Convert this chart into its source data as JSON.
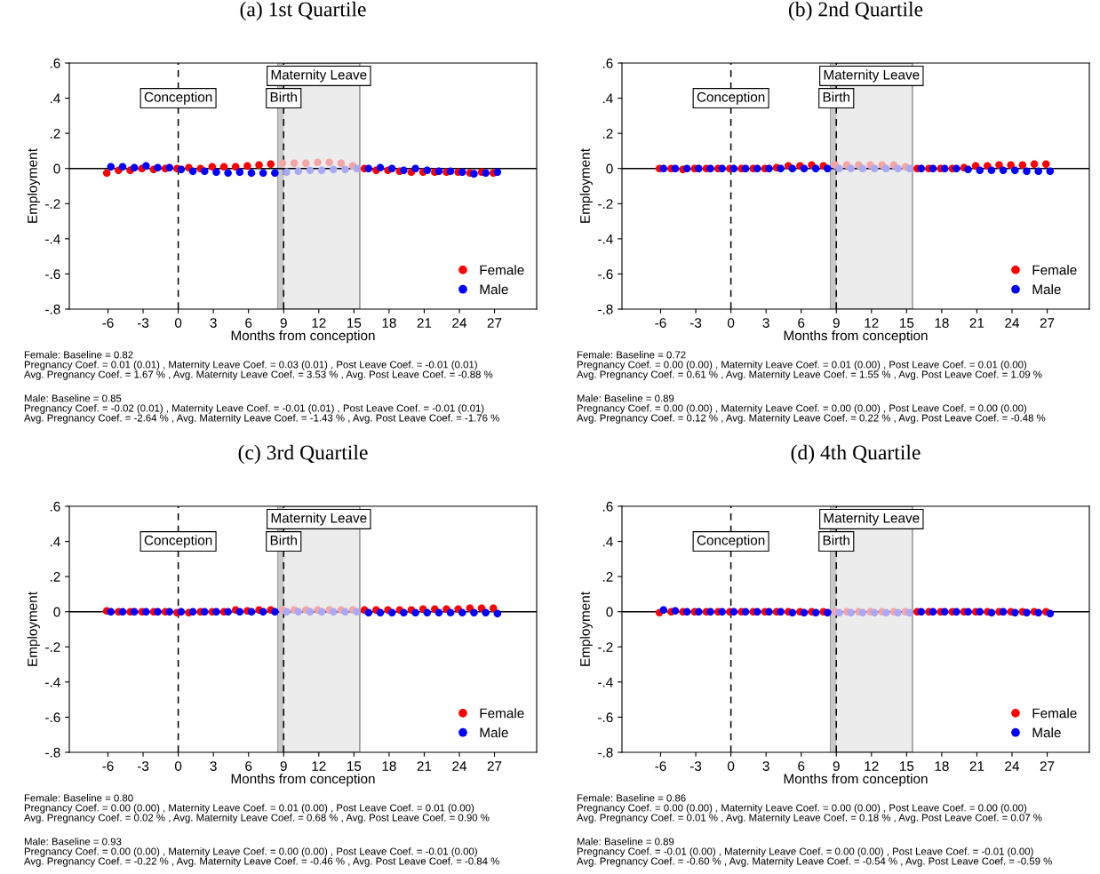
{
  "chart_data": [
    {
      "type": "scatter",
      "title": "(a) 1st Quartile",
      "xlabel": "Months from conception",
      "ylabel": "Employment",
      "xlim": [
        -9.3,
        30.6
      ],
      "xticks": [
        -6,
        -3,
        0,
        3,
        6,
        9,
        12,
        15,
        18,
        21,
        24,
        27
      ],
      "ylim": [
        -0.8,
        0.6
      ],
      "yticks": [
        {
          "value": 0.6,
          "label": ".6"
        },
        {
          "value": 0.4,
          "label": ".4"
        },
        {
          "value": 0.2,
          "label": ".2"
        },
        0,
        {
          "value": -0.2,
          "label": "-.2"
        },
        {
          "value": -0.4,
          "label": "-.4"
        },
        {
          "value": -0.6,
          "label": "-.6"
        },
        {
          "value": -0.8,
          "label": "-.8"
        }
      ],
      "grid": false,
      "legend": "bottom right",
      "marker": "circle",
      "ref_lines": [
        {
          "axis": "y",
          "value": 0,
          "color": "#000000",
          "line_style": "solid"
        },
        {
          "axis": "x",
          "value": 0,
          "label": "Conception",
          "color": "#000000",
          "line_style": "dashed"
        },
        {
          "axis": "x",
          "value": 9,
          "label": "Birth",
          "color": "#000000",
          "line_style": "dashed"
        }
      ],
      "bands": [
        {
          "axis": "x",
          "from": 8.5,
          "to": 15.5,
          "label": "Maternity Leave",
          "color": "#ececec"
        },
        {
          "axis": "x",
          "from": 8.5,
          "to": 9,
          "color": "#c8c8c8"
        }
      ],
      "series": [
        {
          "name": "Female",
          "color": "#ff0000",
          "x": [
            -6.1,
            -5.1,
            -4.1,
            -3.1,
            -2.1,
            -1.1,
            -0.1,
            0.9,
            1.9,
            2.9,
            3.9,
            4.9,
            5.9,
            6.9,
            7.9,
            15.9,
            16.9,
            17.9,
            18.9,
            19.9,
            20.9,
            21.9,
            22.9,
            23.9,
            24.9,
            25.9,
            26.9
          ],
          "values": [
            -0.025,
            -0.01,
            -0.01,
            0,
            -0.005,
            0,
            0,
            0.005,
            0,
            0.01,
            0.01,
            0.01,
            0.015,
            0.02,
            0.025,
            0,
            -0.01,
            -0.01,
            -0.015,
            -0.02,
            -0.02,
            -0.02,
            -0.02,
            -0.02,
            -0.025,
            -0.02,
            -0.025
          ]
        },
        {
          "color": "#f4a6a6",
          "x": [
            8.9,
            9.9,
            10.9,
            11.9,
            12.9,
            13.9,
            14.9
          ],
          "values": [
            0.03,
            0.03,
            0.03,
            0.035,
            0.035,
            0.03,
            0.015
          ]
        },
        {
          "name": "Male",
          "color": "#0000ff",
          "x": [
            -5.75,
            -4.75,
            -3.75,
            -2.75,
            -1.75,
            -0.75,
            0.25,
            1.25,
            2.25,
            3.25,
            4.25,
            5.25,
            6.25,
            7.25,
            8.25,
            16.25,
            17.25,
            18.25,
            19.25,
            20.25,
            21.25,
            22.25,
            23.25,
            24.25,
            25.25,
            26.25,
            27.25
          ],
          "values": [
            0.01,
            0.01,
            0.005,
            0.015,
            0.005,
            0.005,
            -0.005,
            -0.015,
            -0.015,
            -0.02,
            -0.025,
            -0.02,
            -0.025,
            -0.025,
            -0.025,
            0,
            0.005,
            0,
            -0.01,
            0,
            -0.01,
            -0.015,
            -0.015,
            -0.02,
            -0.03,
            -0.025,
            -0.02
          ]
        },
        {
          "color": "#a9a9f7",
          "x": [
            9.25,
            10.25,
            11.25,
            12.25,
            13.25,
            14.25,
            15.25
          ],
          "values": [
            -0.02,
            -0.015,
            -0.01,
            -0.01,
            -0.005,
            -0.005,
            0
          ]
        }
      ],
      "annotations": [
        "Female: Baseline = 0.82\nPregnancy Coef. = 0.01 (0.01) , Maternity Leave Coef. = 0.03 (0.01) , Post Leave Coef. = -0.01 (0.01)\nAvg. Pregnancy Coef. = 1.67 % , Avg. Maternity Leave Coef. = 3.53 % , Avg. Post Leave Coef. = -0.88 %",
        "Male: Baseline = 0.85\nPregnancy Coef. = -0.02 (0.01) , Maternity Leave Coef. = -0.01 (0.01) , Post Leave Coef. = -0.01 (0.01)\nAvg. Pregnancy Coef. = -2.64 % , Avg. Maternity Leave Coef. = -1.43 % , Avg. Post Leave Coef. = -1.76 %"
      ]
    },
    {
      "type": "scatter",
      "title": "(b) 2nd Quartile",
      "xlabel": "Months from conception",
      "ylabel": "Employment",
      "xlim": [
        -9.3,
        30.6
      ],
      "xticks": [
        -6,
        -3,
        0,
        3,
        6,
        9,
        12,
        15,
        18,
        21,
        24,
        27
      ],
      "ylim": [
        -0.8,
        0.6
      ],
      "yticks": [
        {
          "value": 0.6,
          "label": ".6"
        },
        {
          "value": 0.4,
          "label": ".4"
        },
        {
          "value": 0.2,
          "label": ".2"
        },
        0,
        {
          "value": -0.2,
          "label": "-.2"
        },
        {
          "value": -0.4,
          "label": "-.4"
        },
        {
          "value": -0.6,
          "label": "-.6"
        },
        {
          "value": -0.8,
          "label": "-.8"
        }
      ],
      "grid": false,
      "legend": "bottom right",
      "marker": "circle",
      "ref_lines": [
        {
          "axis": "y",
          "value": 0,
          "color": "#000000",
          "line_style": "solid"
        },
        {
          "axis": "x",
          "value": 0,
          "label": "Conception",
          "color": "#000000",
          "line_style": "dashed"
        },
        {
          "axis": "x",
          "value": 9,
          "label": "Birth",
          "color": "#000000",
          "line_style": "dashed"
        }
      ],
      "bands": [
        {
          "axis": "x",
          "from": 8.5,
          "to": 15.5,
          "label": "Maternity Leave",
          "color": "#ececec"
        },
        {
          "axis": "x",
          "from": 8.5,
          "to": 9,
          "color": "#c8c8c8"
        }
      ],
      "series": [
        {
          "name": "Female",
          "color": "#ff0000",
          "x": [
            -6.1,
            -5.1,
            -4.1,
            -3.1,
            -2.1,
            -1.1,
            -0.1,
            0.9,
            1.9,
            2.9,
            3.9,
            4.9,
            5.9,
            6.9,
            7.9,
            15.9,
            16.9,
            17.9,
            18.9,
            19.9,
            20.9,
            21.9,
            22.9,
            23.9,
            24.9,
            25.9,
            26.9
          ],
          "values": [
            0,
            0,
            -0.005,
            0,
            0,
            0,
            0,
            0,
            0,
            0,
            0.005,
            0.015,
            0.015,
            0.02,
            0.015,
            0,
            0,
            0,
            0,
            0.005,
            0.015,
            0.015,
            0.02,
            0.02,
            0.02,
            0.025,
            0.025
          ]
        },
        {
          "color": "#f4a6a6",
          "x": [
            8.9,
            9.9,
            10.9,
            11.9,
            12.9,
            13.9,
            14.9
          ],
          "values": [
            0.02,
            0.02,
            0.02,
            0.02,
            0.02,
            0.02,
            0.01
          ]
        },
        {
          "name": "Male",
          "color": "#0000ff",
          "x": [
            -5.75,
            -4.75,
            -3.75,
            -2.75,
            -1.75,
            -0.75,
            0.25,
            1.25,
            2.25,
            3.25,
            4.25,
            5.25,
            6.25,
            7.25,
            8.25,
            16.25,
            17.25,
            18.25,
            19.25,
            20.25,
            21.25,
            22.25,
            23.25,
            24.25,
            25.25,
            26.25,
            27.25
          ],
          "values": [
            0,
            0,
            0,
            0,
            0,
            0,
            0,
            0,
            0,
            0,
            0,
            0,
            0,
            0,
            0,
            0,
            0,
            0,
            0,
            -0.005,
            -0.01,
            -0.01,
            -0.01,
            -0.01,
            -0.015,
            -0.015,
            -0.015
          ]
        },
        {
          "color": "#a9a9f7",
          "x": [
            9.25,
            10.25,
            11.25,
            12.25,
            13.25,
            14.25,
            15.25
          ],
          "values": [
            0,
            0,
            0,
            0,
            0,
            0,
            0
          ]
        }
      ],
      "annotations": [
        "Female: Baseline = 0.72\nPregnancy Coef. = 0.00 (0.00) , Maternity Leave Coef. = 0.01 (0.00) , Post Leave Coef. = 0.01 (0.00)\nAvg. Pregnancy Coef. = 0.61 % , Avg. Maternity Leave Coef. = 1.55 % , Avg. Post Leave Coef. = 1.09 %",
        "Male: Baseline = 0.89\nPregnancy Coef. = 0.00 (0.00) , Maternity Leave Coef. = 0.00 (0.00) , Post Leave Coef. = 0.00 (0.00)\nAvg. Pregnancy Coef. = 0.12 % , Avg. Maternity Leave Coef. = 0.22 % , Avg. Post Leave Coef. = -0.48 %"
      ]
    },
    {
      "type": "scatter",
      "title": "(c) 3rd Quartile",
      "xlabel": "Months from conception",
      "ylabel": "Employment",
      "xlim": [
        -9.3,
        30.6
      ],
      "xticks": [
        -6,
        -3,
        0,
        3,
        6,
        9,
        12,
        15,
        18,
        21,
        24,
        27
      ],
      "ylim": [
        -0.8,
        0.6
      ],
      "yticks": [
        {
          "value": 0.6,
          "label": ".6"
        },
        {
          "value": 0.4,
          "label": ".4"
        },
        {
          "value": 0.2,
          "label": ".2"
        },
        0,
        {
          "value": -0.2,
          "label": "-.2"
        },
        {
          "value": -0.4,
          "label": "-.4"
        },
        {
          "value": -0.6,
          "label": "-.6"
        },
        {
          "value": -0.8,
          "label": "-.8"
        }
      ],
      "grid": false,
      "legend": "bottom right",
      "marker": "circle",
      "ref_lines": [
        {
          "axis": "y",
          "value": 0,
          "color": "#000000",
          "line_style": "solid"
        },
        {
          "axis": "x",
          "value": 0,
          "label": "Conception",
          "color": "#000000",
          "line_style": "dashed"
        },
        {
          "axis": "x",
          "value": 9,
          "label": "Birth",
          "color": "#000000",
          "line_style": "dashed"
        }
      ],
      "bands": [
        {
          "axis": "x",
          "from": 8.5,
          "to": 15.5,
          "label": "Maternity Leave",
          "color": "#ececec"
        },
        {
          "axis": "x",
          "from": 8.5,
          "to": 9,
          "color": "#c8c8c8"
        }
      ],
      "series": [
        {
          "name": "Female",
          "color": "#ff0000",
          "x": [
            -6.1,
            -5.1,
            -4.1,
            -3.1,
            -2.1,
            -1.1,
            -0.1,
            0.9,
            1.9,
            2.9,
            3.9,
            4.9,
            5.9,
            6.9,
            7.9,
            15.9,
            16.9,
            17.9,
            18.9,
            19.9,
            20.9,
            21.9,
            22.9,
            23.9,
            24.9,
            25.9,
            26.9
          ],
          "values": [
            0.005,
            0,
            0,
            0,
            0,
            0,
            -0.005,
            -0.005,
            0,
            0,
            0,
            0.01,
            0.005,
            0.01,
            0.01,
            0.01,
            0.01,
            0.01,
            0.01,
            0.01,
            0.015,
            0.015,
            0.015,
            0.015,
            0.02,
            0.02,
            0.02
          ]
        },
        {
          "color": "#f4a6a6",
          "x": [
            8.9,
            9.9,
            10.9,
            11.9,
            12.9,
            13.9,
            14.9
          ],
          "values": [
            0.01,
            0.01,
            0.01,
            0.01,
            0.01,
            0.01,
            0.01
          ]
        },
        {
          "name": "Male",
          "color": "#0000ff",
          "x": [
            -5.75,
            -4.75,
            -3.75,
            -2.75,
            -1.75,
            -0.75,
            0.25,
            1.25,
            2.25,
            3.25,
            4.25,
            5.25,
            6.25,
            7.25,
            8.25,
            16.25,
            17.25,
            18.25,
            19.25,
            20.25,
            21.25,
            22.25,
            23.25,
            24.25,
            25.25,
            26.25,
            27.25
          ],
          "values": [
            0,
            0,
            0,
            0,
            0,
            0,
            0,
            0,
            0,
            0,
            0,
            0,
            0,
            0,
            0,
            -0.005,
            -0.005,
            -0.005,
            -0.005,
            -0.005,
            -0.005,
            -0.005,
            -0.005,
            -0.005,
            -0.005,
            -0.005,
            -0.01
          ]
        },
        {
          "color": "#a9a9f7",
          "x": [
            9.25,
            10.25,
            11.25,
            12.25,
            13.25,
            14.25,
            15.25
          ],
          "values": [
            0,
            0,
            0,
            0,
            0,
            0,
            0
          ]
        }
      ],
      "annotations": [
        "Female: Baseline = 0.80\nPregnancy Coef. = 0.00 (0.00) , Maternity Leave Coef. = 0.01 (0.00) , Post Leave Coef. = 0.01 (0.00)\nAvg. Pregnancy Coef. = 0.02 % , Avg. Maternity Leave Coef. = 0.68 % , Avg. Post Leave Coef. = 0.90 %",
        "Male: Baseline = 0.93\nPregnancy Coef. = 0.00 (0.00) , Maternity Leave Coef. = 0.00 (0.00) , Post Leave Coef. = -0.01 (0.00)\nAvg. Pregnancy Coef. = -0.22 % , Avg. Maternity Leave Coef. = -0.46 % , Avg. Post Leave Coef. = -0.84 %"
      ]
    },
    {
      "type": "scatter",
      "title": "(d) 4th Quartile",
      "xlabel": "Months from conception",
      "ylabel": "Employment",
      "xlim": [
        -9.3,
        30.6
      ],
      "xticks": [
        -6,
        -3,
        0,
        3,
        6,
        9,
        12,
        15,
        18,
        21,
        24,
        27
      ],
      "ylim": [
        -0.8,
        0.6
      ],
      "yticks": [
        {
          "value": 0.6,
          "label": ".6"
        },
        {
          "value": 0.4,
          "label": ".4"
        },
        {
          "value": 0.2,
          "label": ".2"
        },
        0,
        {
          "value": -0.2,
          "label": "-.2"
        },
        {
          "value": -0.4,
          "label": "-.4"
        },
        {
          "value": -0.6,
          "label": "-.6"
        },
        {
          "value": -0.8,
          "label": "-.8"
        }
      ],
      "grid": false,
      "legend": "bottom right",
      "marker": "circle",
      "ref_lines": [
        {
          "axis": "y",
          "value": 0,
          "color": "#000000",
          "line_style": "solid"
        },
        {
          "axis": "x",
          "value": 0,
          "label": "Conception",
          "color": "#000000",
          "line_style": "dashed"
        },
        {
          "axis": "x",
          "value": 9,
          "label": "Birth",
          "color": "#000000",
          "line_style": "dashed"
        }
      ],
      "bands": [
        {
          "axis": "x",
          "from": 8.5,
          "to": 15.5,
          "label": "Maternity Leave",
          "color": "#ececec"
        },
        {
          "axis": "x",
          "from": 8.5,
          "to": 9,
          "color": "#c8c8c8"
        }
      ],
      "series": [
        {
          "name": "Female",
          "color": "#ff0000",
          "x": [
            -6.1,
            -5.1,
            -4.1,
            -3.1,
            -2.1,
            -1.1,
            -0.1,
            0.9,
            1.9,
            2.9,
            3.9,
            4.9,
            5.9,
            6.9,
            7.9,
            15.9,
            16.9,
            17.9,
            18.9,
            19.9,
            20.9,
            21.9,
            22.9,
            23.9,
            24.9,
            25.9,
            26.9
          ],
          "values": [
            -0.005,
            0,
            0,
            0,
            0,
            0,
            0,
            0,
            0,
            0,
            0,
            0,
            0,
            0,
            0,
            0,
            0,
            0,
            0,
            0,
            0,
            0,
            0,
            0,
            0,
            0,
            0
          ]
        },
        {
          "color": "#f4a6a6",
          "x": [
            8.9,
            9.9,
            10.9,
            11.9,
            12.9,
            13.9,
            14.9
          ],
          "values": [
            0,
            0,
            0,
            0,
            0,
            0,
            0
          ]
        },
        {
          "name": "Male",
          "color": "#0000ff",
          "x": [
            -5.75,
            -4.75,
            -3.75,
            -2.75,
            -1.75,
            -0.75,
            0.25,
            1.25,
            2.25,
            3.25,
            4.25,
            5.25,
            6.25,
            7.25,
            8.25,
            16.25,
            17.25,
            18.25,
            19.25,
            20.25,
            21.25,
            22.25,
            23.25,
            24.25,
            25.25,
            26.25,
            27.25
          ],
          "values": [
            0.01,
            0.005,
            0,
            0,
            0,
            0,
            0,
            0,
            0,
            0,
            0,
            -0.005,
            -0.005,
            -0.005,
            -0.005,
            0,
            0,
            0,
            0,
            0,
            0,
            -0.005,
            0,
            -0.005,
            -0.005,
            -0.005,
            -0.01
          ]
        },
        {
          "color": "#a9a9f7",
          "x": [
            9.25,
            10.25,
            11.25,
            12.25,
            13.25,
            14.25,
            15.25
          ],
          "values": [
            -0.005,
            -0.005,
            -0.005,
            -0.005,
            -0.005,
            -0.005,
            -0.005
          ]
        }
      ],
      "annotations": [
        "Female: Baseline = 0.86\nPregnancy Coef. = 0.00 (0.00) , Maternity Leave Coef. = 0.00 (0.00) , Post Leave Coef. = 0.00 (0.00)\nAvg. Pregnancy Coef. = 0.01 % , Avg. Maternity Leave Coef. = 0.18 % , Avg. Post Leave Coef. = 0.07 %",
        "Male: Baseline = 0.89\nPregnancy Coef. = -0.01 (0.00) , Maternity Leave Coef. = 0.00 (0.00) , Post Leave Coef. = -0.01 (0.00)\nAvg. Pregnancy Coef. = -0.60 % , Avg. Maternity Leave Coef. = -0.54 % , Avg. Post Leave Coef. = -0.59 %"
      ]
    }
  ]
}
